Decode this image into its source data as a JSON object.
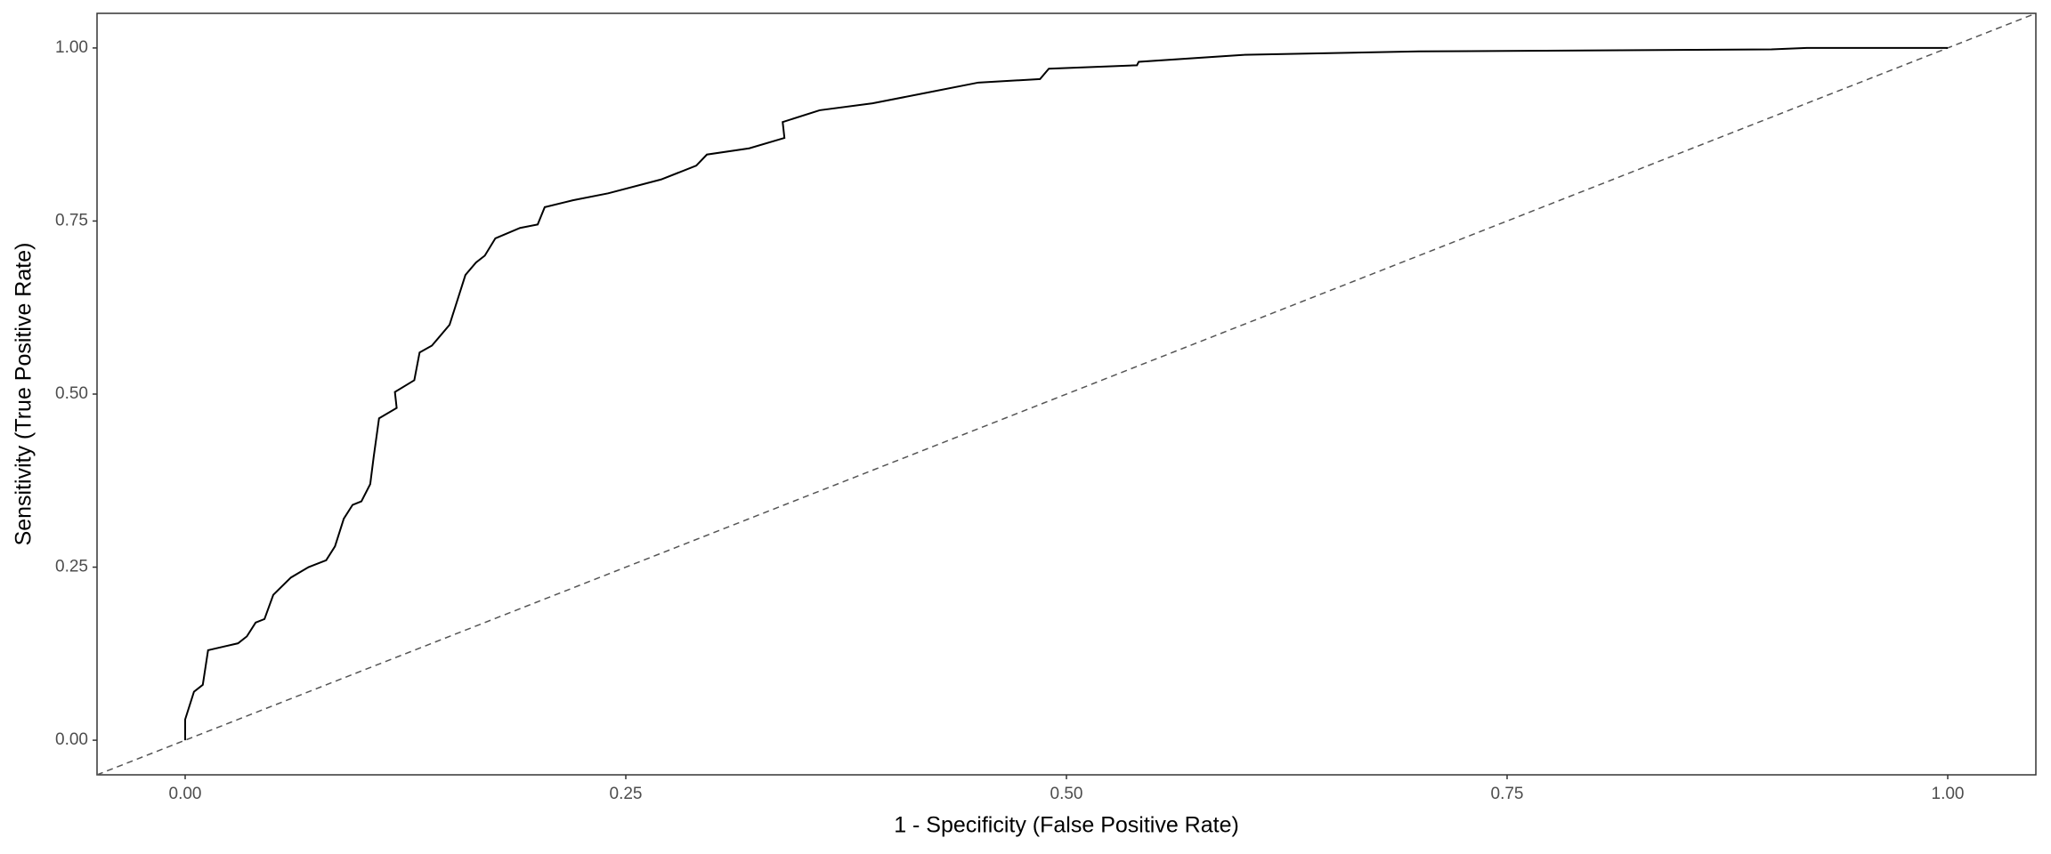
{
  "chart_data": {
    "type": "line",
    "x_label": "1 - Specificity (False Positive Rate)",
    "y_label": "Sensitivity (True Positive Rate)",
    "x": [
      0,
      0,
      0.005,
      0.01,
      0.013,
      0.03,
      0.035,
      0.04,
      0.045,
      0.05,
      0.06,
      0.07,
      0.08,
      0.085,
      0.09,
      0.095,
      0.1,
      0.105,
      0.107,
      0.11,
      0.12,
      0.119,
      0.13,
      0.133,
      0.14,
      0.15,
      0.159,
      0.165,
      0.17,
      0.176,
      0.19,
      0.2,
      0.204,
      0.22,
      0.24,
      0.27,
      0.29,
      0.296,
      0.32,
      0.34,
      0.339,
      0.36,
      0.39,
      0.42,
      0.45,
      0.485,
      0.49,
      0.54,
      0.541,
      0.6,
      0.7,
      0.9,
      0.92,
      1.0
    ],
    "series": [
      {
        "color": "#000000",
        "values": [
          0,
          0.03,
          0.07,
          0.08,
          0.13,
          0.14,
          0.15,
          0.17,
          0.175,
          0.21,
          0.235,
          0.25,
          0.26,
          0.28,
          0.32,
          0.34,
          0.345,
          0.37,
          0.41,
          0.465,
          0.48,
          0.503,
          0.52,
          0.56,
          0.57,
          0.6,
          0.672,
          0.69,
          0.7,
          0.725,
          0.74,
          0.745,
          0.77,
          0.78,
          0.79,
          0.81,
          0.83,
          0.846,
          0.855,
          0.87,
          0.893,
          0.91,
          0.92,
          0.935,
          0.95,
          0.955,
          0.97,
          0.975,
          0.98,
          0.99,
          0.995,
          0.998,
          1.0,
          1.0
        ]
      }
    ],
    "xlim": [
      -0.05,
      1.05
    ],
    "ylim": [
      -0.05,
      1.05
    ],
    "xticks": [
      {
        "value": 0,
        "label": "0.00"
      },
      {
        "value": 0.25,
        "label": "0.25"
      },
      {
        "value": 0.5,
        "label": "0.50"
      },
      {
        "value": 0.75,
        "label": "0.75"
      },
      {
        "value": 1,
        "label": "1.00"
      }
    ],
    "yticks": [
      {
        "value": 0,
        "label": "0.00"
      },
      {
        "value": 0.25,
        "label": "0.25"
      },
      {
        "value": 0.5,
        "label": "0.50"
      },
      {
        "value": 0.75,
        "label": "0.75"
      },
      {
        "value": 1,
        "label": "1.00"
      }
    ],
    "diagonal_reference": true,
    "diagonal_color": "#555555",
    "grid": false
  }
}
